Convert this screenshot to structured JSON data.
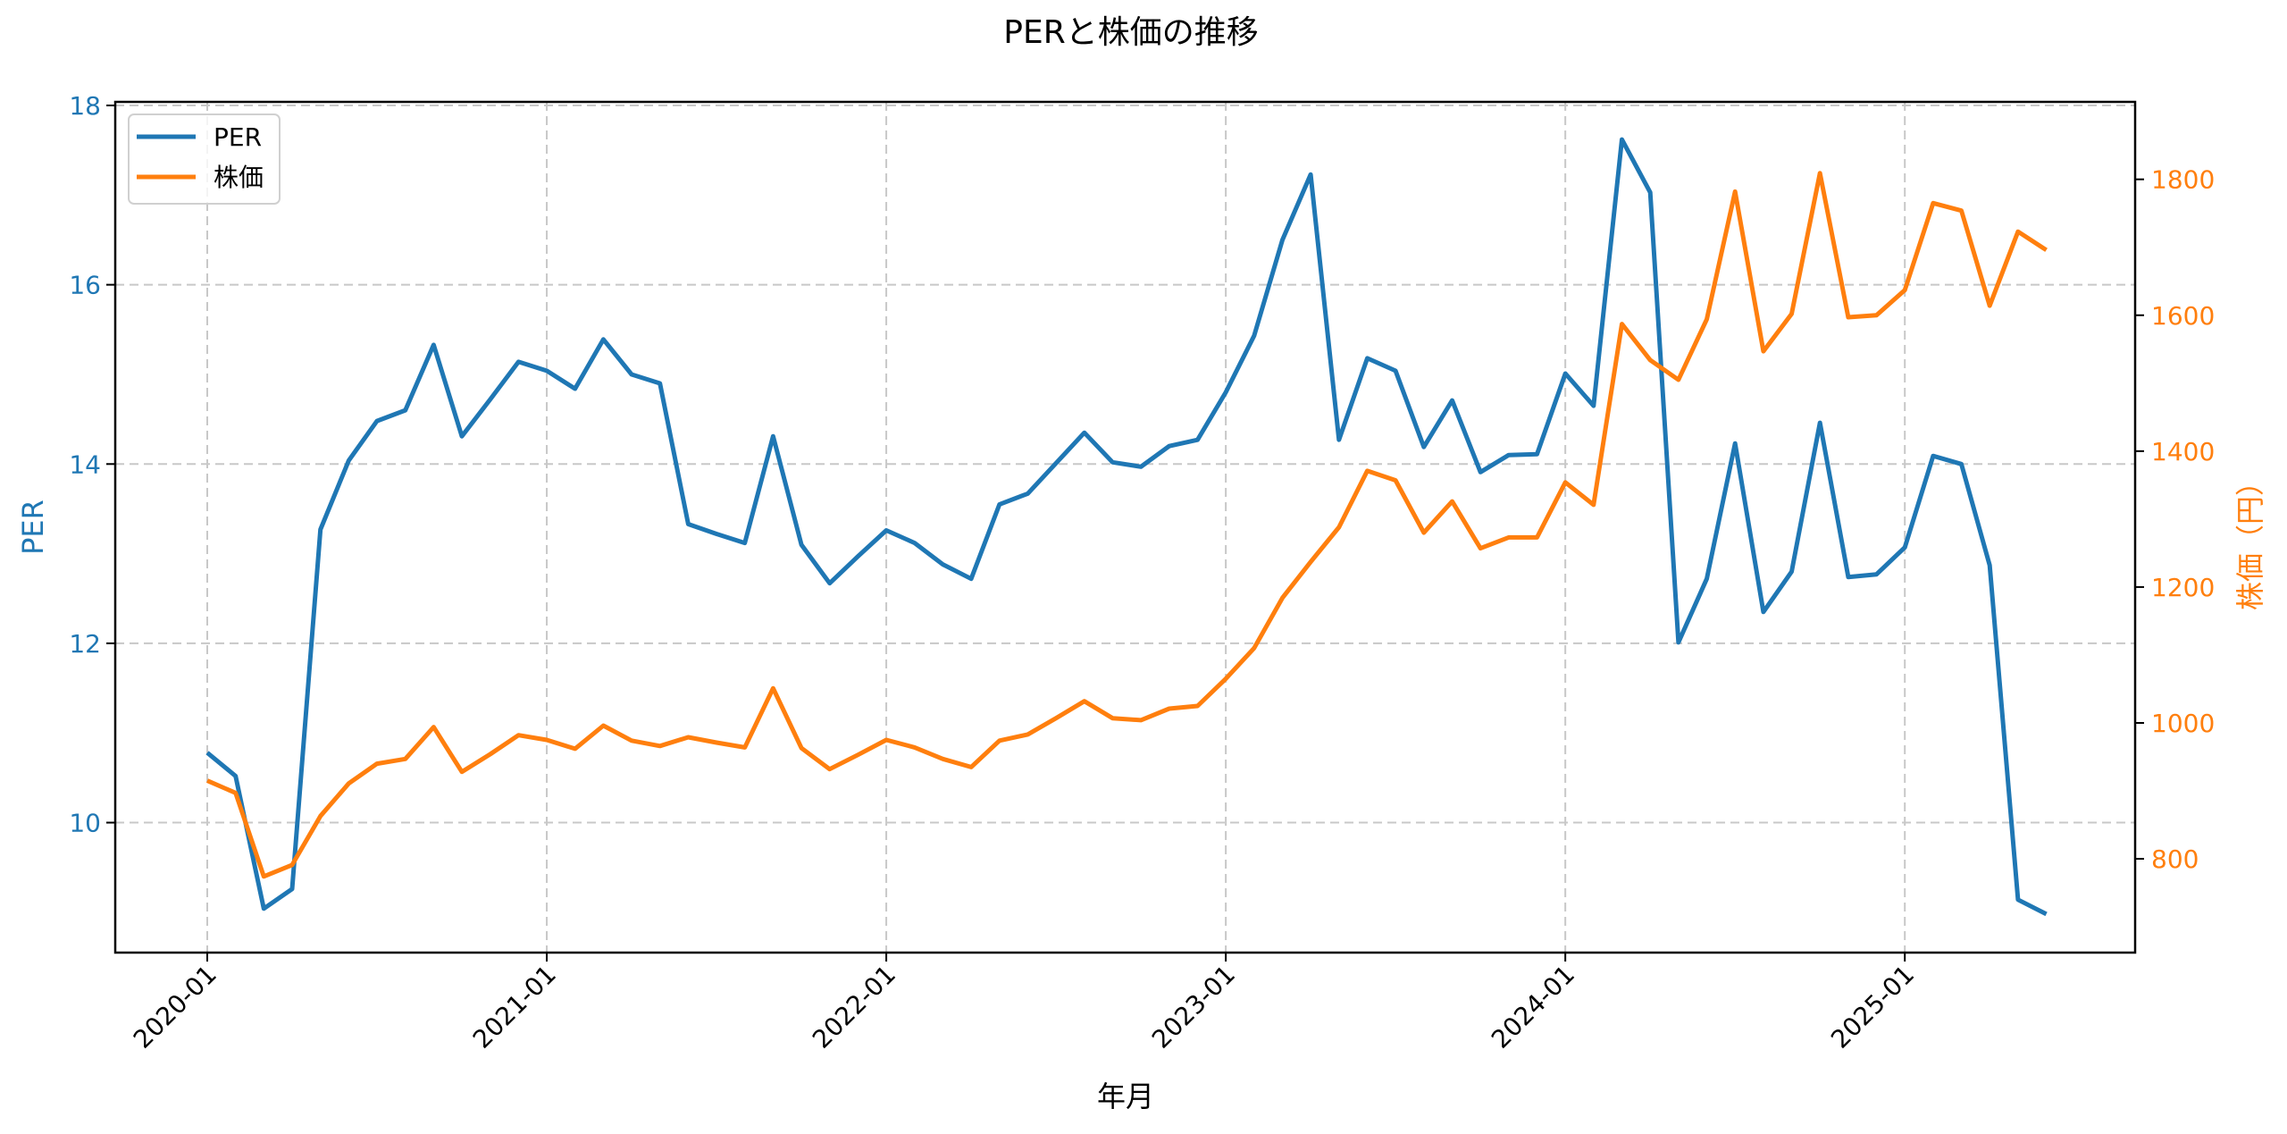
{
  "chart_data": {
    "type": "line",
    "title": "PERと株価の推移",
    "xlabel": "年月",
    "ylabel": "PER",
    "ylabel_right": "株価（円）",
    "x_tick_labels": [
      "2020-01",
      "2021-01",
      "2022-01",
      "2023-01",
      "2024-01",
      "2025-01"
    ],
    "y_ticks_left": [
      10,
      12,
      14,
      16,
      18
    ],
    "y_ticks_right": [
      800,
      1000,
      1200,
      1400,
      1600,
      1800
    ],
    "ylim_left": [
      8.55,
      18.04
    ],
    "ylim_right": [
      662,
      1914
    ],
    "grid": true,
    "legend_position": "upper left",
    "x": [
      "2020-01",
      "2020-02",
      "2020-03",
      "2020-04",
      "2020-05",
      "2020-06",
      "2020-07",
      "2020-08",
      "2020-09",
      "2020-10",
      "2020-11",
      "2020-12",
      "2021-01",
      "2021-02",
      "2021-03",
      "2021-04",
      "2021-05",
      "2021-06",
      "2021-07",
      "2021-08",
      "2021-09",
      "2021-10",
      "2021-11",
      "2021-12",
      "2022-01",
      "2022-02",
      "2022-03",
      "2022-04",
      "2022-05",
      "2022-06",
      "2022-07",
      "2022-08",
      "2022-09",
      "2022-10",
      "2022-11",
      "2022-12",
      "2023-01",
      "2023-02",
      "2023-03",
      "2023-04",
      "2023-05",
      "2023-06",
      "2023-07",
      "2023-08",
      "2023-09",
      "2023-10",
      "2023-11",
      "2023-12",
      "2024-01",
      "2024-02",
      "2024-03",
      "2024-04",
      "2024-05",
      "2024-06",
      "2024-07",
      "2024-08",
      "2024-09",
      "2024-10",
      "2024-11",
      "2024-12",
      "2025-01",
      "2025-02",
      "2025-03",
      "2025-04",
      "2025-05",
      "2025-06"
    ],
    "series": [
      {
        "name": "PER",
        "axis": "left",
        "color": "#1f77b4",
        "values": [
          10.78,
          10.52,
          9.04,
          9.26,
          13.27,
          14.04,
          14.48,
          14.6,
          15.33,
          14.31,
          14.72,
          15.14,
          15.04,
          14.84,
          15.39,
          15.0,
          14.9,
          13.33,
          13.22,
          13.12,
          14.31,
          13.1,
          12.67,
          12.97,
          13.26,
          13.12,
          12.88,
          12.72,
          13.55,
          13.67,
          14.01,
          14.35,
          14.02,
          13.97,
          14.2,
          14.27,
          14.8,
          15.43,
          16.5,
          17.23,
          14.27,
          15.18,
          15.04,
          14.19,
          14.71,
          13.91,
          14.1,
          14.11,
          15.01,
          14.65,
          17.62,
          17.03,
          12.01,
          12.72,
          14.23,
          12.35,
          12.8,
          14.46,
          12.74,
          12.77,
          13.07,
          14.09,
          14.0,
          12.87,
          9.14,
          8.98
        ]
      },
      {
        "name": "株価",
        "axis": "right",
        "color": "#ff7f0e",
        "values": [
          915,
          897,
          774,
          791,
          863,
          911,
          940,
          947,
          994,
          928,
          954,
          982,
          975,
          962,
          996,
          974,
          966,
          979,
          971,
          964,
          1051,
          963,
          932,
          953,
          975,
          964,
          947,
          935,
          974,
          983,
          1007,
          1032,
          1007,
          1004,
          1021,
          1025,
          1065,
          1110,
          1184,
          1237,
          1288,
          1371,
          1357,
          1280,
          1326,
          1257,
          1273,
          1273,
          1354,
          1321,
          1587,
          1534,
          1505,
          1594,
          1782,
          1547,
          1602,
          1809,
          1597,
          1600,
          1637,
          1765,
          1754,
          1614,
          1723,
          1696
        ]
      }
    ]
  },
  "legend": {
    "items": [
      {
        "label": "PER",
        "color": "#1f77b4"
      },
      {
        "label": "株価",
        "color": "#ff7f0e"
      }
    ]
  },
  "colors": {
    "per": "#1f77b4",
    "price": "#ff7f0e",
    "grid": "#c8c8c8",
    "axis": "#000000"
  }
}
